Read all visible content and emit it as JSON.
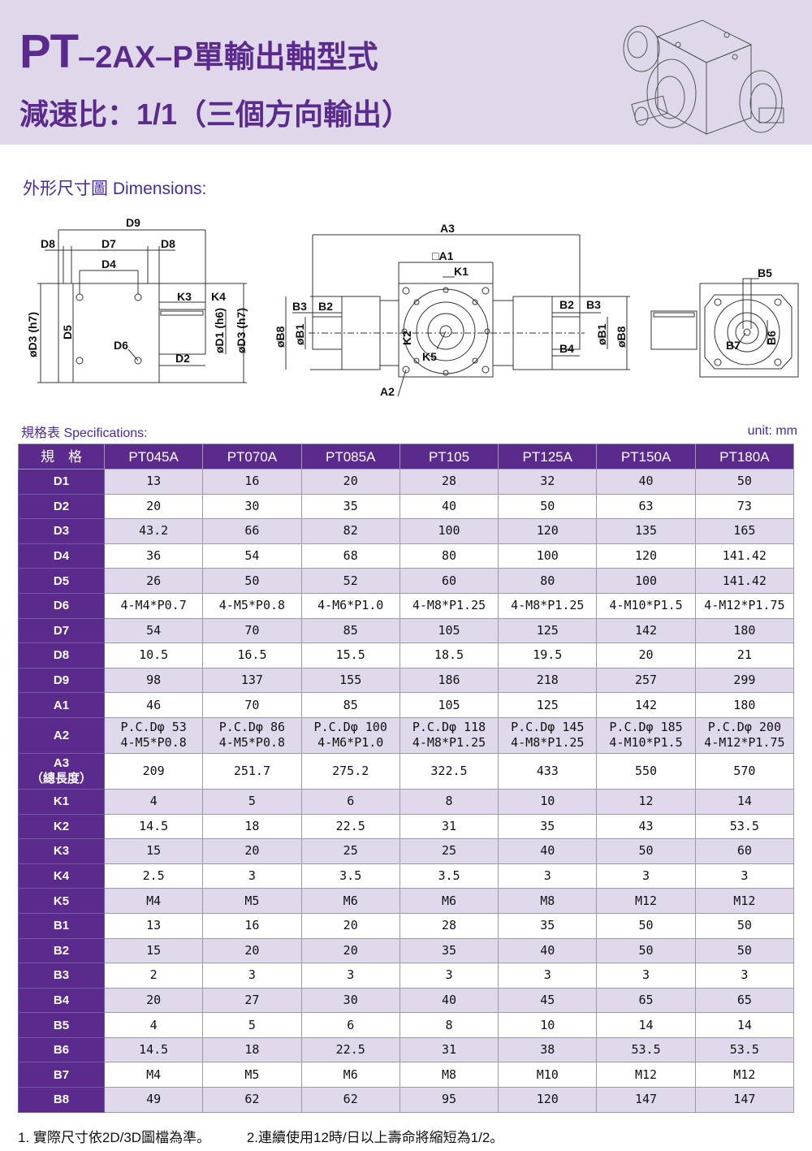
{
  "header": {
    "title_prefix": "PT",
    "title_rest": "–2AX–P單輸出軸型式",
    "subtitle": "減速比：1/1（三個方向輸出）",
    "colors": {
      "banner": "#dfd8eb",
      "accent": "#5a2a8c"
    },
    "image": "gearbox-isometric"
  },
  "dimensions": {
    "title": "外形尺寸圖 Dimensions:",
    "labels": {
      "D9": "D9",
      "D8a": "D8",
      "D7": "D7",
      "D8b": "D8",
      "D4": "D4",
      "K3": "K3",
      "K4": "K4",
      "D6": "D6",
      "D2": "D2",
      "D3a": "øD3 (h7)",
      "D5": "D5",
      "D1": "øD1 (h6)",
      "D3b": "øD3 (h7)",
      "A3": "A3",
      "A1": "□A1",
      "K1": "K1",
      "B3a": "B3",
      "B2a": "B2",
      "B2b": "B2",
      "B3b": "B3",
      "B4": "B4",
      "B8a": "øB8",
      "B1a": "øB1",
      "B1b": "øB1",
      "B8b": "øB8",
      "K2": "K2",
      "K5": "K5",
      "A2": "A2",
      "B5": "B5",
      "B6": "B6",
      "B7": "B7"
    }
  },
  "specs": {
    "title": "規格表 Specifications:",
    "unit": "unit: mm",
    "corner_header": "規　格",
    "models": [
      "PT045A",
      "PT070A",
      "PT085A",
      "PT105",
      "PT125A",
      "PT150A",
      "PT180A"
    ],
    "rows": [
      {
        "label": "D1",
        "values": [
          "13",
          "16",
          "20",
          "28",
          "32",
          "40",
          "50"
        ]
      },
      {
        "label": "D2",
        "values": [
          "20",
          "30",
          "35",
          "40",
          "50",
          "63",
          "73"
        ]
      },
      {
        "label": "D3",
        "values": [
          "43.2",
          "66",
          "82",
          "100",
          "120",
          "135",
          "165"
        ]
      },
      {
        "label": "D4",
        "values": [
          "36",
          "54",
          "68",
          "80",
          "100",
          "120",
          "141.42"
        ]
      },
      {
        "label": "D5",
        "values": [
          "26",
          "50",
          "52",
          "60",
          "80",
          "100",
          "141.42"
        ]
      },
      {
        "label": "D6",
        "values": [
          "4-M4*P0.7",
          "4-M5*P0.8",
          "4-M6*P1.0",
          "4-M8*P1.25",
          "4-M8*P1.25",
          "4-M10*P1.5",
          "4-M12*P1.75"
        ]
      },
      {
        "label": "D7",
        "values": [
          "54",
          "70",
          "85",
          "105",
          "125",
          "142",
          "180"
        ]
      },
      {
        "label": "D8",
        "values": [
          "10.5",
          "16.5",
          "15.5",
          "18.5",
          "19.5",
          "20",
          "21"
        ]
      },
      {
        "label": "D9",
        "values": [
          "98",
          "137",
          "155",
          "186",
          "218",
          "257",
          "299"
        ]
      },
      {
        "label": "A1",
        "values": [
          "46",
          "70",
          "85",
          "105",
          "125",
          "142",
          "180"
        ]
      },
      {
        "label": "A2",
        "values": [
          "P.C.Dφ 53\n4-M5*P0.8",
          "P.C.Dφ 86\n4-M5*P0.8",
          "P.C.Dφ 100\n4-M6*P1.0",
          "P.C.Dφ 118\n4-M8*P1.25",
          "P.C.Dφ 145\n4-M8*P1.25",
          "P.C.Dφ 185\n4-M10*P1.5",
          "P.C.Dφ 200\n4-M12*P1.75"
        ]
      },
      {
        "label": "A3\n（總長度）",
        "values": [
          "209",
          "251.7",
          "275.2",
          "322.5",
          "433",
          "550",
          "570"
        ]
      },
      {
        "label": "K1",
        "values": [
          "4",
          "5",
          "6",
          "8",
          "10",
          "12",
          "14"
        ]
      },
      {
        "label": "K2",
        "values": [
          "14.5",
          "18",
          "22.5",
          "31",
          "35",
          "43",
          "53.5"
        ]
      },
      {
        "label": "K3",
        "values": [
          "15",
          "20",
          "25",
          "25",
          "40",
          "50",
          "60"
        ]
      },
      {
        "label": "K4",
        "values": [
          "2.5",
          "3",
          "3.5",
          "3.5",
          "3",
          "3",
          "3"
        ]
      },
      {
        "label": "K5",
        "values": [
          "M4",
          "M5",
          "M6",
          "M6",
          "M8",
          "M12",
          "M12"
        ]
      },
      {
        "label": "B1",
        "values": [
          "13",
          "16",
          "20",
          "28",
          "35",
          "50",
          "50"
        ]
      },
      {
        "label": "B2",
        "values": [
          "15",
          "20",
          "20",
          "35",
          "40",
          "50",
          "50"
        ]
      },
      {
        "label": "B3",
        "values": [
          "2",
          "3",
          "3",
          "3",
          "3",
          "3",
          "3"
        ]
      },
      {
        "label": "B4",
        "values": [
          "20",
          "27",
          "30",
          "40",
          "45",
          "65",
          "65"
        ]
      },
      {
        "label": "B5",
        "values": [
          "4",
          "5",
          "6",
          "8",
          "10",
          "14",
          "14"
        ]
      },
      {
        "label": "B6",
        "values": [
          "14.5",
          "18",
          "22.5",
          "31",
          "38",
          "53.5",
          "53.5"
        ]
      },
      {
        "label": "B7",
        "values": [
          "M4",
          "M5",
          "M6",
          "M8",
          "M10",
          "M12",
          "M12"
        ]
      },
      {
        "label": "B8",
        "values": [
          "49",
          "62",
          "62",
          "95",
          "120",
          "147",
          "147"
        ]
      }
    ]
  },
  "notes": [
    "1. 實際尺寸依2D/3D圖檔為準。",
    "2.連續使用12時/日以上壽命將縮短為1/2。"
  ]
}
